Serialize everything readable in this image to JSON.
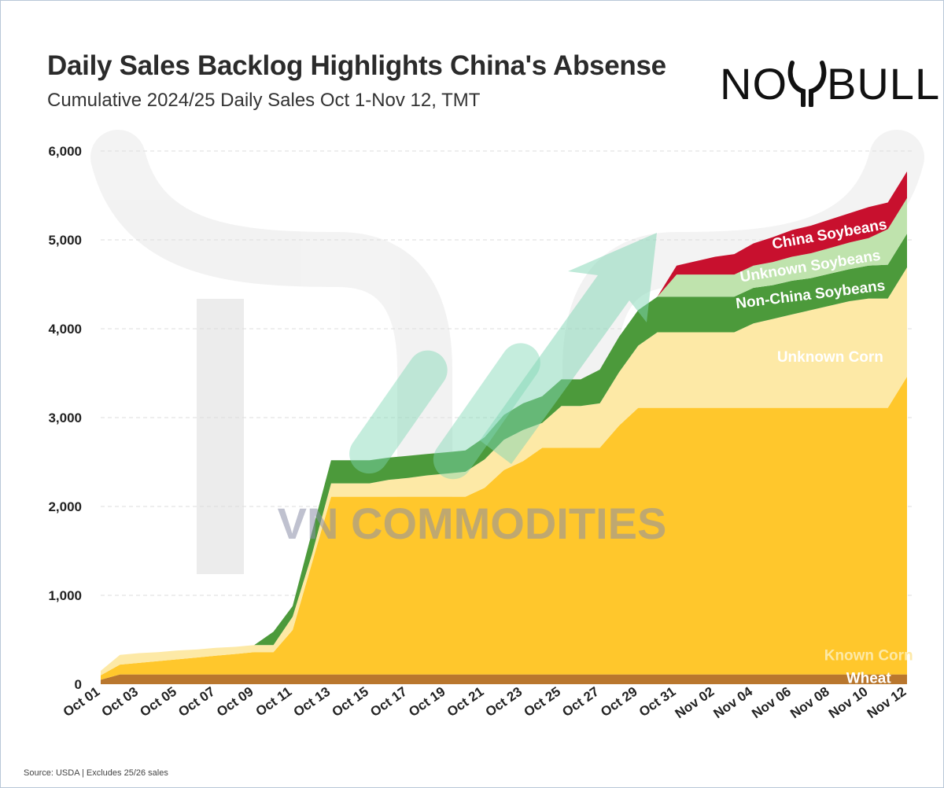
{
  "title": "Daily Sales Backlog Highlights China's Absense",
  "subtitle": "Cumulative 2024/25 Daily Sales Oct 1-Nov 12, TMT",
  "logo": {
    "left": "NO",
    "right": "BULL"
  },
  "watermark": "VN COMMODITIES",
  "source": "Source: USDA | Excludes 25/26 sales",
  "colors": {
    "wheat": "#b9772e",
    "known_corn": "#ffc72c",
    "unknown_corn": "#fde9a6",
    "non_china_soybeans": "#4c9a3b",
    "unknown_soybeans": "#bfe3ad",
    "china_soybeans": "#c8102e",
    "grid": "#dddddd",
    "watermark_text": "#8b8fa8",
    "arrow": "#7fd6b3"
  },
  "chart_data": {
    "type": "area",
    "stacked": true,
    "title": "Daily Sales Backlog Highlights China's Absense",
    "subtitle": "Cumulative 2024/25 Daily Sales Oct 1-Nov 12, TMT",
    "x": [
      "Oct 01",
      "Oct 02",
      "Oct 03",
      "Oct 04",
      "Oct 05",
      "Oct 06",
      "Oct 07",
      "Oct 08",
      "Oct 09",
      "Oct 10",
      "Oct 11",
      "Oct 12",
      "Oct 13",
      "Oct 14",
      "Oct 15",
      "Oct 16",
      "Oct 17",
      "Oct 18",
      "Oct 19",
      "Oct 20",
      "Oct 21",
      "Oct 22",
      "Oct 23",
      "Oct 24",
      "Oct 25",
      "Oct 26",
      "Oct 27",
      "Oct 28",
      "Oct 29",
      "Oct 30",
      "Oct 31",
      "Nov 01",
      "Nov 02",
      "Nov 03",
      "Nov 04",
      "Nov 05",
      "Nov 06",
      "Nov 07",
      "Nov 08",
      "Nov 09",
      "Nov 10",
      "Nov 11",
      "Nov 12"
    ],
    "x_tick_labels": [
      "Oct 01",
      "Oct 03",
      "Oct 05",
      "Oct 07",
      "Oct 09",
      "Oct 11",
      "Oct 13",
      "Oct 15",
      "Oct 17",
      "Oct 19",
      "Oct 21",
      "Oct 23",
      "Oct 25",
      "Oct 27",
      "Oct 29",
      "Oct 31",
      "Nov 02",
      "Nov 04",
      "Nov 06",
      "Nov 08",
      "Nov 10",
      "Nov 12"
    ],
    "ylim": [
      0,
      6000
    ],
    "y_ticks": [
      0,
      1000,
      2000,
      3000,
      4000,
      5000,
      6000
    ],
    "y_tick_labels": [
      "0",
      "1,000",
      "2,000",
      "3,000",
      "4,000",
      "5,000",
      "6,000"
    ],
    "grid": true,
    "series": [
      {
        "name": "Wheat",
        "color": "#b9772e",
        "label_color": "#ffffff",
        "values": [
          50,
          110,
          110,
          110,
          110,
          110,
          110,
          110,
          110,
          110,
          110,
          110,
          110,
          110,
          110,
          110,
          110,
          110,
          110,
          110,
          110,
          110,
          110,
          110,
          110,
          110,
          110,
          110,
          110,
          110,
          110,
          110,
          110,
          110,
          110,
          110,
          110,
          110,
          110,
          110,
          110,
          110,
          110
        ]
      },
      {
        "name": "Known Corn",
        "color": "#ffc72c",
        "label_color": "#fde9a6",
        "values": [
          50,
          110,
          130,
          150,
          170,
          190,
          210,
          230,
          250,
          250,
          500,
          1250,
          2000,
          2000,
          2000,
          2000,
          2000,
          2000,
          2000,
          2000,
          2100,
          2300,
          2400,
          2550,
          2550,
          2550,
          2550,
          2800,
          3000,
          3000,
          3000,
          3000,
          3000,
          3000,
          3000,
          3000,
          3000,
          3000,
          3000,
          3000,
          3000,
          3000,
          3350
        ]
      },
      {
        "name": "Unknown Corn",
        "color": "#fde9a6",
        "label_color": "#ffffff",
        "values": [
          50,
          110,
          110,
          100,
          100,
          90,
          90,
          80,
          80,
          80,
          150,
          100,
          150,
          150,
          150,
          190,
          210,
          240,
          260,
          280,
          320,
          340,
          350,
          280,
          470,
          470,
          500,
          600,
          700,
          850,
          850,
          850,
          850,
          850,
          950,
          1000,
          1050,
          1100,
          1150,
          1200,
          1230,
          1230,
          1230
        ]
      },
      {
        "name": "Non-China Soybeans",
        "color": "#4c9a3b",
        "label_color": "#ffffff",
        "values": [
          0,
          0,
          0,
          0,
          0,
          0,
          0,
          0,
          0,
          150,
          120,
          250,
          260,
          260,
          260,
          250,
          250,
          240,
          240,
          240,
          250,
          280,
          300,
          300,
          300,
          300,
          380,
          400,
          400,
          400,
          400,
          400,
          400,
          400,
          400,
          380,
          380,
          360,
          360,
          360,
          370,
          380,
          380
        ]
      },
      {
        "name": "Unknown Soybeans",
        "color": "#bfe3ad",
        "label_color": "#ffffff",
        "values": [
          0,
          0,
          0,
          0,
          0,
          0,
          0,
          0,
          0,
          0,
          0,
          0,
          0,
          0,
          0,
          0,
          0,
          0,
          0,
          0,
          0,
          0,
          0,
          0,
          0,
          0,
          0,
          0,
          0,
          0,
          250,
          250,
          250,
          250,
          250,
          260,
          270,
          280,
          290,
          300,
          310,
          400,
          400
        ]
      },
      {
        "name": "China Soybeans",
        "color": "#c8102e",
        "label_color": "#ffffff",
        "values": [
          0,
          0,
          0,
          0,
          0,
          0,
          0,
          0,
          0,
          0,
          0,
          0,
          0,
          0,
          0,
          0,
          0,
          0,
          0,
          0,
          0,
          0,
          0,
          0,
          0,
          0,
          0,
          0,
          0,
          0,
          100,
          150,
          200,
          230,
          250,
          280,
          300,
          310,
          320,
          330,
          350,
          300,
          300
        ]
      }
    ]
  }
}
